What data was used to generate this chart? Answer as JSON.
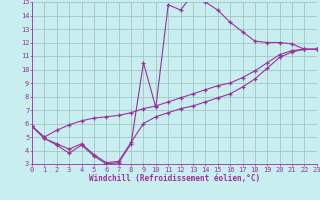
{
  "xlabel": "Windchill (Refroidissement éolien,°C)",
  "xlim": [
    0,
    23
  ],
  "ylim": [
    3,
    15
  ],
  "xticks": [
    0,
    1,
    2,
    3,
    4,
    5,
    6,
    7,
    8,
    9,
    10,
    11,
    12,
    13,
    14,
    15,
    16,
    17,
    18,
    19,
    20,
    21,
    22,
    23
  ],
  "yticks": [
    3,
    4,
    5,
    6,
    7,
    8,
    9,
    10,
    11,
    12,
    13,
    14,
    15
  ],
  "bg_color": "#c8eef0",
  "grid_color": "#9bbebe",
  "line_color": "#993399",
  "curves": [
    {
      "x": [
        0,
        1,
        2,
        3,
        4,
        5,
        6,
        7,
        8,
        9,
        10,
        11,
        12,
        13,
        14,
        15,
        16,
        17,
        18,
        19,
        20,
        21,
        22,
        23
      ],
      "y": [
        5.8,
        4.9,
        4.4,
        3.8,
        4.4,
        3.6,
        3.0,
        3.1,
        4.5,
        10.5,
        7.2,
        14.8,
        14.4,
        15.6,
        15.0,
        14.4,
        13.5,
        12.8,
        12.1,
        12.0,
        12.0,
        11.9,
        11.5,
        11.5
      ]
    },
    {
      "x": [
        0,
        1,
        2,
        3,
        4,
        5,
        6,
        7,
        8,
        9,
        10,
        11,
        12,
        13,
        14,
        15,
        16,
        17,
        18,
        19,
        20,
        21,
        22,
        23
      ],
      "y": [
        5.8,
        4.9,
        4.5,
        4.1,
        4.5,
        3.7,
        3.1,
        3.2,
        4.6,
        6.0,
        6.5,
        6.8,
        7.1,
        7.3,
        7.6,
        7.9,
        8.2,
        8.7,
        9.3,
        10.1,
        10.9,
        11.3,
        11.5,
        11.5
      ]
    },
    {
      "x": [
        0,
        1,
        2,
        3,
        4,
        5,
        6,
        7,
        8,
        9,
        10,
        11,
        12,
        13,
        14,
        15,
        16,
        17,
        18,
        19,
        20,
        21,
        22,
        23
      ],
      "y": [
        5.8,
        5.0,
        5.5,
        5.9,
        6.2,
        6.4,
        6.5,
        6.6,
        6.8,
        7.1,
        7.3,
        7.6,
        7.9,
        8.2,
        8.5,
        8.8,
        9.0,
        9.4,
        9.9,
        10.5,
        11.1,
        11.4,
        11.5,
        11.5
      ]
    }
  ],
  "tick_fontsize": 5,
  "xlabel_fontsize": 5.5
}
